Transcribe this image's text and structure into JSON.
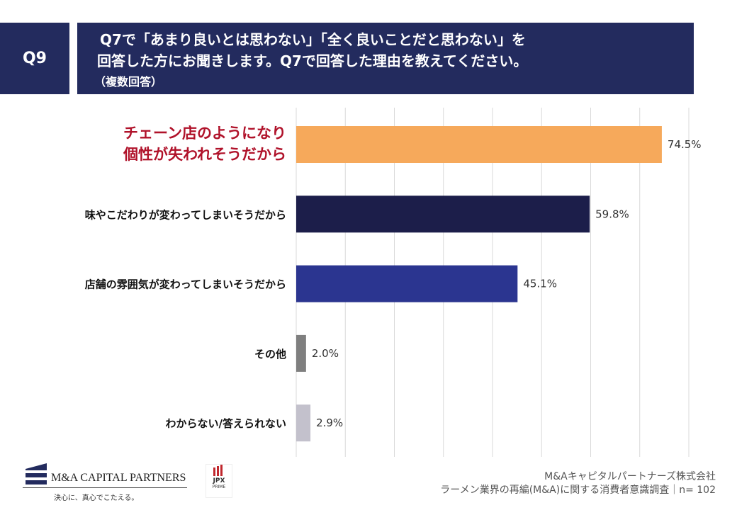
{
  "header": {
    "question_no": "Q9",
    "line1": "Q7で「あまり良いとは思わない」「全く良いことだと思わない」を",
    "line2": "回答した方にお聞きします。Q7で回答した理由を教えてください。",
    "line3": "（複数回答）"
  },
  "chart_data": {
    "type": "bar",
    "orientation": "horizontal",
    "categories": [
      "チェーン店のようになり個性が失われそうだから",
      "味やこだわりが変わってしまいそうだから",
      "店舗の雰囲気が変わってしまいそうだから",
      "その他",
      "わからない/答えられない"
    ],
    "category_lines": [
      [
        "チェーン店のようになり",
        "個性が失われそうだから"
      ],
      [
        "味やこだわりが変わってしまいそうだから"
      ],
      [
        "店舗の雰囲気が変わってしまいそうだから"
      ],
      [
        "その他"
      ],
      [
        "わからない/答えられない"
      ]
    ],
    "values": [
      74.5,
      59.8,
      45.1,
      2.0,
      2.9
    ],
    "value_labels": [
      "74.5%",
      "59.8%",
      "45.1%",
      "2.0%",
      "2.9%"
    ],
    "colors": [
      "#f6a95b",
      "#1c1e4a",
      "#2b3590",
      "#7f7f7f",
      "#c3c1cc"
    ],
    "highlight_index": 0,
    "highlight_color": "#b0122a",
    "xlim": [
      0,
      80
    ],
    "grid": true,
    "grid_step": 10
  },
  "footer": {
    "logo_name": "M&A CAPITAL PARTNERS",
    "logo_tagline": "決心に、真心でこたえる。",
    "jpx_label": "JPX",
    "jpx_sub": "PRIME",
    "company": "M&Aキャピタルパートナーズ株式会社",
    "survey": "ラーメン業界の再編(M&A)に関する消費者意識調査｜n= 102"
  }
}
